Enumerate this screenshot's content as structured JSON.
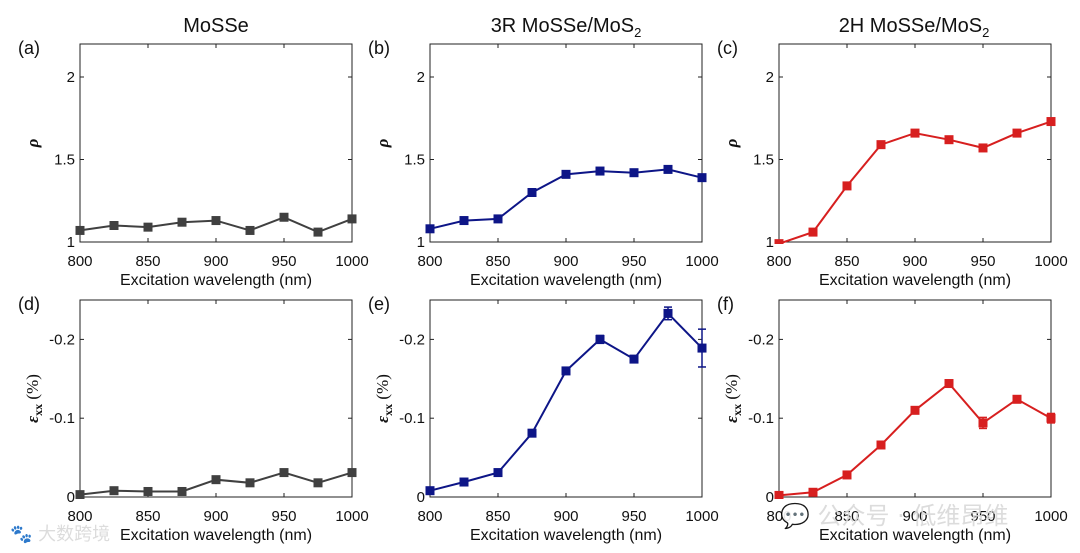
{
  "column_titles": [
    {
      "main": "MoSSe",
      "sub": ""
    },
    {
      "main": "3R MoSSe/MoS",
      "sub": "2"
    },
    {
      "main": "2H MoSSe/MoS",
      "sub": "2"
    }
  ],
  "watermarks": {
    "left": "大数跨境",
    "right": "公众号 · 低维昂维"
  },
  "chart_data": [
    {
      "panel": "(a)",
      "type": "line",
      "color": "#404040",
      "x": [
        800,
        825,
        850,
        875,
        900,
        925,
        950,
        975,
        1000
      ],
      "values": [
        1.07,
        1.1,
        1.09,
        1.12,
        1.13,
        1.07,
        1.15,
        1.06,
        1.14
      ],
      "xlabel": "Excitation wavelength (nm)",
      "ylabel": "ρ",
      "xlim": [
        800,
        1000
      ],
      "ylim": [
        1,
        2.2
      ],
      "inverted": false,
      "xticks": [
        800,
        850,
        900,
        950,
        1000
      ],
      "xtick_labels": [
        "800",
        "850",
        "900",
        "950",
        "1000"
      ],
      "yticks": [
        1,
        1.5,
        2
      ],
      "ytick_labels": [
        "1",
        "1.5",
        "2"
      ]
    },
    {
      "panel": "(b)",
      "type": "line",
      "color": "#0d1587",
      "x": [
        800,
        825,
        850,
        875,
        900,
        925,
        950,
        975,
        1000
      ],
      "values": [
        1.08,
        1.13,
        1.14,
        1.3,
        1.41,
        1.43,
        1.42,
        1.44,
        1.39
      ],
      "xlabel": "Excitation wavelength (nm)",
      "ylabel": "ρ",
      "xlim": [
        800,
        1000
      ],
      "ylim": [
        1,
        2.2
      ],
      "inverted": false,
      "xticks": [
        800,
        850,
        900,
        950,
        1000
      ],
      "xtick_labels": [
        "800",
        "850",
        "900",
        "950",
        "1000"
      ],
      "yticks": [
        1,
        1.5,
        2
      ],
      "ytick_labels": [
        "1",
        "1.5",
        "2"
      ]
    },
    {
      "panel": "(c)",
      "type": "line",
      "color": "#d71f1f",
      "x": [
        800,
        825,
        850,
        875,
        900,
        925,
        950,
        975,
        1000
      ],
      "values": [
        0.99,
        1.06,
        1.34,
        1.59,
        1.66,
        1.62,
        1.57,
        1.66,
        1.73
      ],
      "xlabel": "Excitation wavelength (nm)",
      "ylabel": "ρ",
      "xlim": [
        800,
        1000
      ],
      "ylim": [
        1,
        2.2
      ],
      "inverted": false,
      "xticks": [
        800,
        850,
        900,
        950,
        1000
      ],
      "xtick_labels": [
        "800",
        "850",
        "900",
        "950",
        "1000"
      ],
      "yticks": [
        1,
        1.5,
        2
      ],
      "ytick_labels": [
        "1",
        "1.5",
        "2"
      ]
    },
    {
      "panel": "(d)",
      "type": "line",
      "color": "#404040",
      "x": [
        800,
        825,
        850,
        875,
        900,
        925,
        950,
        975,
        1000
      ],
      "values": [
        -0.003,
        -0.008,
        -0.007,
        -0.007,
        -0.022,
        -0.018,
        -0.031,
        -0.018,
        -0.031
      ],
      "errors": [
        0.001,
        0.001,
        0.001,
        0.001,
        0.002,
        0.001,
        0.002,
        0.001,
        0.002
      ],
      "xlabel": "Excitation wavelength (nm)",
      "ylabel": "ε",
      "ylabel_sub": "xx",
      "ylabel_unit": " (%)",
      "xlim": [
        800,
        1000
      ],
      "ylim": [
        -0.25,
        0
      ],
      "inverted": true,
      "xticks": [
        800,
        850,
        900,
        950,
        1000
      ],
      "xtick_labels": [
        "800",
        "850",
        "900",
        "950",
        "1000"
      ],
      "yticks": [
        0,
        -0.1,
        -0.2
      ],
      "ytick_labels": [
        "0",
        "-0.1",
        "-0.2"
      ]
    },
    {
      "panel": "(e)",
      "type": "line",
      "color": "#0d1587",
      "x": [
        800,
        825,
        850,
        875,
        900,
        925,
        950,
        975,
        1000
      ],
      "values": [
        -0.008,
        -0.019,
        -0.031,
        -0.081,
        -0.16,
        -0.2,
        -0.175,
        -0.233,
        -0.189
      ],
      "errors": [
        0.001,
        0.001,
        0.002,
        0.003,
        0.004,
        0.005,
        0.004,
        0.008,
        0.024
      ],
      "xlabel": "Excitation wavelength (nm)",
      "ylabel": "ε",
      "ylabel_sub": "xx",
      "ylabel_unit": " (%)",
      "xlim": [
        800,
        1000
      ],
      "ylim": [
        -0.25,
        0
      ],
      "inverted": true,
      "xticks": [
        800,
        850,
        900,
        950,
        1000
      ],
      "xtick_labels": [
        "800",
        "850",
        "900",
        "950",
        "1000"
      ],
      "yticks": [
        0,
        -0.1,
        -0.2
      ],
      "ytick_labels": [
        "0",
        "-0.1",
        "-0.2"
      ]
    },
    {
      "panel": "(f)",
      "type": "line",
      "color": "#d71f1f",
      "x": [
        800,
        825,
        850,
        875,
        900,
        925,
        950,
        975,
        1000
      ],
      "values": [
        -0.002,
        -0.006,
        -0.028,
        -0.066,
        -0.11,
        -0.144,
        -0.094,
        -0.124,
        -0.1
      ],
      "errors": [
        0.001,
        0.001,
        0.002,
        0.002,
        0.003,
        0.004,
        0.007,
        0.003,
        0.006
      ],
      "xlabel": "Excitation wavelength (nm)",
      "ylabel": "ε",
      "ylabel_sub": "xx",
      "ylabel_unit": " (%)",
      "xlim": [
        800,
        1000
      ],
      "ylim": [
        -0.25,
        0
      ],
      "inverted": true,
      "xticks": [
        800,
        850,
        900,
        950,
        1000
      ],
      "xtick_labels": [
        "800",
        "850",
        "900",
        "950",
        "1000"
      ],
      "yticks": [
        0,
        -0.1,
        -0.2
      ],
      "ytick_labels": [
        "0",
        "-0.1",
        "-0.2"
      ]
    }
  ]
}
